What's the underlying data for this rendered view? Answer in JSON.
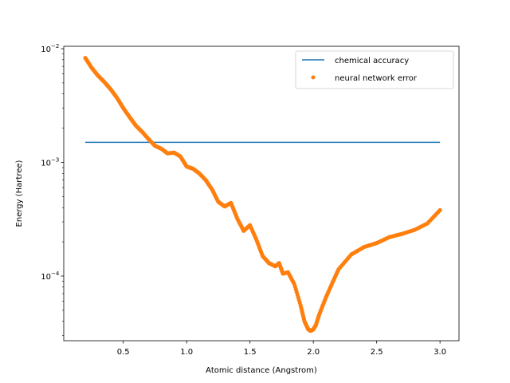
{
  "chart_data": {
    "type": "line",
    "title": "",
    "xlabel": "Atomic distance (Angstrom)",
    "ylabel": "Energy (Hartree)",
    "xlim": [
      0.03,
      3.15
    ],
    "ylim": [
      2.7e-05,
      0.0105
    ],
    "yscale": "log",
    "grid": false,
    "legend_position": "top-right",
    "x_ticks": [
      {
        "value": 0.5,
        "label": "0.5"
      },
      {
        "value": 1.0,
        "label": "1.0"
      },
      {
        "value": 1.5,
        "label": "1.5"
      },
      {
        "value": 2.0,
        "label": "2.0"
      },
      {
        "value": 2.5,
        "label": "2.5"
      },
      {
        "value": 3.0,
        "label": "3.0"
      }
    ],
    "y_ticks": [
      {
        "value": 0.0001,
        "base": "10",
        "exp": "−4"
      },
      {
        "value": 0.001,
        "base": "10",
        "exp": "−3"
      },
      {
        "value": 0.01,
        "base": "10",
        "exp": "−2"
      }
    ],
    "series": [
      {
        "name": "chemical accuracy",
        "kind": "line",
        "color": "#1f77b4",
        "x": [
          0.2,
          3.0
        ],
        "y": [
          0.0015,
          0.0015
        ]
      },
      {
        "name": "neural network error",
        "kind": "scatter",
        "color": "#ff7f0e",
        "x": [
          0.2,
          0.25,
          0.3,
          0.35,
          0.4,
          0.45,
          0.5,
          0.55,
          0.6,
          0.65,
          0.7,
          0.75,
          0.8,
          0.85,
          0.9,
          0.95,
          1.0,
          1.05,
          1.1,
          1.15,
          1.2,
          1.25,
          1.3,
          1.35,
          1.4,
          1.45,
          1.5,
          1.55,
          1.6,
          1.65,
          1.7,
          1.73,
          1.76,
          1.8,
          1.85,
          1.9,
          1.93,
          1.96,
          1.98,
          2.0,
          2.02,
          2.05,
          2.1,
          2.15,
          2.2,
          2.3,
          2.4,
          2.5,
          2.6,
          2.7,
          2.8,
          2.9,
          3.0
        ],
        "y": [
          0.0083,
          0.0068,
          0.0058,
          0.0051,
          0.0044,
          0.0037,
          0.003,
          0.0025,
          0.0021,
          0.00185,
          0.0016,
          0.0014,
          0.00132,
          0.0012,
          0.00122,
          0.00113,
          0.00092,
          0.00088,
          0.0008,
          0.0007,
          0.00058,
          0.00045,
          0.00041,
          0.00044,
          0.00032,
          0.00025,
          0.00028,
          0.00021,
          0.00015,
          0.00013,
          0.000122,
          0.00013,
          0.000105,
          0.000108,
          8.5e-05,
          5.5e-05,
          4e-05,
          3.4e-05,
          3.3e-05,
          3.4e-05,
          3.7e-05,
          4.7e-05,
          6.5e-05,
          8.7e-05,
          0.000115,
          0.000155,
          0.00018,
          0.000195,
          0.00022,
          0.000235,
          0.000255,
          0.00029,
          0.00038
        ]
      }
    ]
  }
}
